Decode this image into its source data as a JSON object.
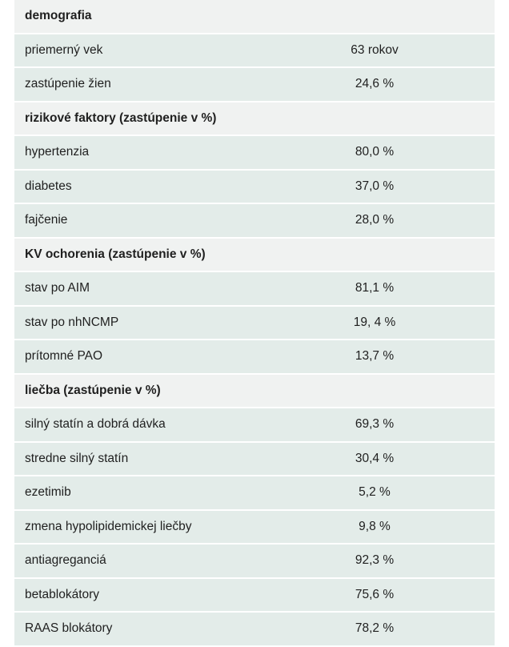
{
  "table": {
    "rows": [
      {
        "type": "section",
        "label": "demografia"
      },
      {
        "type": "row",
        "label": "priemerný vek",
        "value": "63 rokov"
      },
      {
        "type": "row",
        "label": "zastúpenie žien",
        "value": "24,6 %"
      },
      {
        "type": "section",
        "label": "rizikové faktory (zastúpenie v %)"
      },
      {
        "type": "row",
        "label": "hypertenzia",
        "value": "80,0 %"
      },
      {
        "type": "row",
        "label": "diabetes",
        "value": "37,0 %"
      },
      {
        "type": "row",
        "label": "fajčenie",
        "value": "28,0 %"
      },
      {
        "type": "section",
        "label": "KV ochorenia (zastúpenie v %)"
      },
      {
        "type": "row",
        "label": "stav po AIM",
        "value": "81,1 %"
      },
      {
        "type": "row",
        "label": "stav po nhNCMP",
        "value": "19, 4 %"
      },
      {
        "type": "row",
        "label": "prítomné PAO",
        "value": "13,7 %"
      },
      {
        "type": "section",
        "label": "liečba (zastúpenie v %)"
      },
      {
        "type": "row",
        "label": "silný statín a dobrá dávka",
        "value": "69,3 %"
      },
      {
        "type": "row",
        "label": "stredne silný statín",
        "value": "30,4 %"
      },
      {
        "type": "row",
        "label": "ezetimib",
        "value": "5,2 %"
      },
      {
        "type": "row",
        "label": "zmena hypolipidemickej liečby",
        "value": "9,8 %"
      },
      {
        "type": "row",
        "label": "antiagreganciá",
        "value": "92,3 %"
      },
      {
        "type": "row",
        "label": "betablokátory",
        "value": "75,6 %"
      },
      {
        "type": "row",
        "label": "RAAS blokátory",
        "value": "78,2 %"
      }
    ]
  }
}
